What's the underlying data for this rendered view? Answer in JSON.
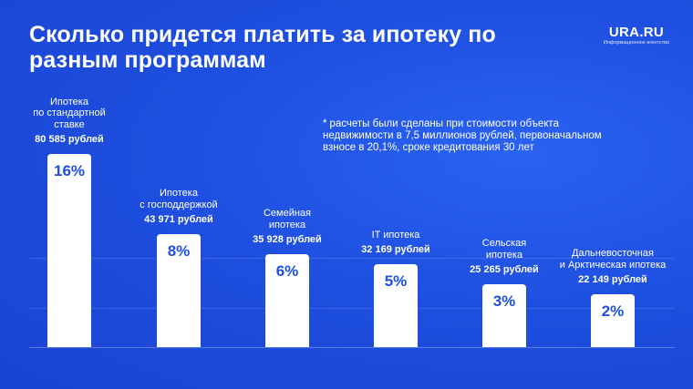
{
  "title": "Сколько придется платить за ипотеку по разным программам",
  "brand": {
    "name": "URA.RU",
    "subtitle": "Информационное агентство"
  },
  "footnote": {
    "star": "*",
    "text": "расчеты были сделаны при стоимости объекта недвижимости в 7,5 миллионов рублей, первоначальном взносе в 20,1%, сроке кредитования 30 лет"
  },
  "colors": {
    "background": "#1f4fe0",
    "bar": "#ffffff",
    "bar_text": "#1e4fe0"
  },
  "chart_data": {
    "type": "bar",
    "title": "Сколько придется платить за ипотеку по разным программам",
    "categories": [
      "Ипотека\nпо стандартной\nставке",
      "Ипотека\nс господдержкой",
      "Семейная\nипотека",
      "IT ипотека",
      "Сельская\nипотека",
      "Дальневосточная\nи Арктическая ипотека"
    ],
    "payments": [
      "80 585 рублей",
      "43 971 рублей",
      "35 928 рублей",
      "32 169 рублей",
      "25 265 рублей",
      "22 149 рублей"
    ],
    "payment_values": [
      80585,
      43971,
      35928,
      32169,
      25265,
      22149
    ],
    "rate_labels": [
      "16%",
      "8%",
      "6%",
      "5%",
      "3%",
      "2%"
    ],
    "values": [
      16,
      8,
      6,
      5,
      3,
      2
    ],
    "unit": "%",
    "xlabel": "",
    "ylabel": "",
    "grid": true,
    "legend": "none"
  }
}
